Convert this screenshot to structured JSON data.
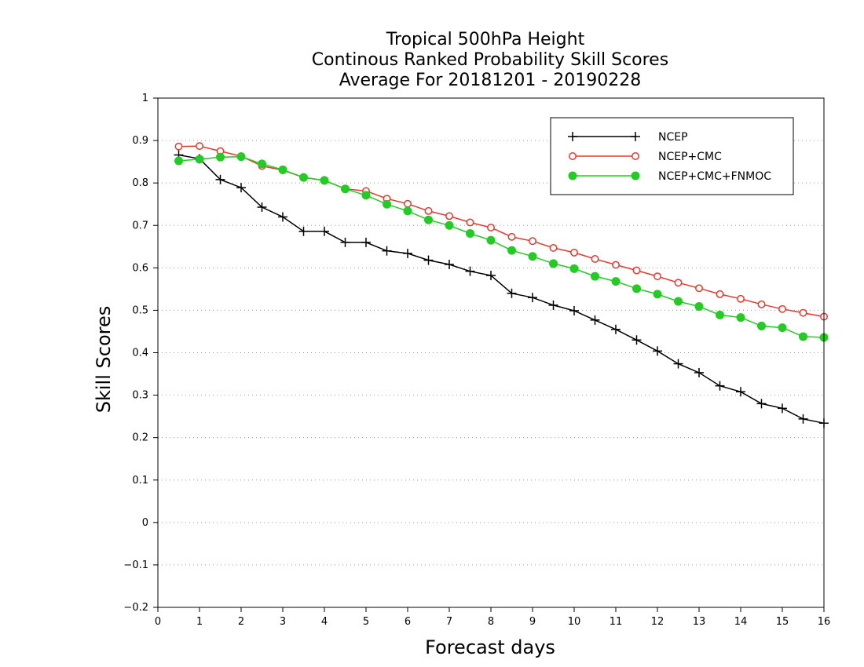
{
  "chart_data": {
    "type": "line",
    "title": [
      "Tropical 500hPa Height",
      "Continous Ranked Probability Skill Scores",
      "Average For 20181201 - 20190228"
    ],
    "xlabel": "Forecast days",
    "ylabel": "Skill Scores",
    "xlim": [
      0,
      16
    ],
    "ylim": [
      -0.2,
      1
    ],
    "xticks": [
      "0",
      "1",
      "2",
      "3",
      "4",
      "5",
      "6",
      "7",
      "8",
      "9",
      "10",
      "11",
      "12",
      "13",
      "14",
      "15",
      "16"
    ],
    "yticks": [
      "1",
      "0.9",
      "0.8",
      "0.7",
      "0.6",
      "0.5",
      "0.4",
      "0.3",
      "0.2",
      "0.1",
      "0",
      "−0.1",
      "−0.2"
    ],
    "grid": true,
    "legend_position": "top-right",
    "x": [
      0.5,
      1,
      1.5,
      2,
      2.5,
      3,
      3.5,
      4,
      4.5,
      5,
      5.5,
      6,
      6.5,
      7,
      7.5,
      8,
      8.5,
      9,
      9.5,
      10,
      10.5,
      11,
      11.5,
      12,
      12.5,
      13,
      13.5,
      14,
      14.5,
      15,
      15.5,
      16
    ],
    "series": [
      {
        "name": "NCEP",
        "color": "#000000",
        "marker": "plus",
        "values": [
          0.866,
          0.857,
          0.808,
          0.789,
          0.743,
          0.72,
          0.686,
          0.686,
          0.66,
          0.66,
          0.64,
          0.634,
          0.618,
          0.608,
          0.592,
          0.582,
          0.54,
          0.53,
          0.512,
          0.499,
          0.477,
          0.455,
          0.43,
          0.404,
          0.374,
          0.353,
          0.322,
          0.308,
          0.28,
          0.269,
          0.244,
          0.234
        ]
      },
      {
        "name": "NCEP+CMC",
        "color": "#e8392f",
        "marker": "open-circle",
        "values": [
          0.886,
          0.887,
          0.875,
          0.863,
          0.84,
          0.83,
          0.813,
          0.806,
          0.786,
          0.781,
          0.763,
          0.751,
          0.734,
          0.722,
          0.707,
          0.695,
          0.673,
          0.663,
          0.647,
          0.636,
          0.621,
          0.607,
          0.594,
          0.58,
          0.565,
          0.552,
          0.538,
          0.527,
          0.514,
          0.503,
          0.494,
          0.485
        ]
      },
      {
        "name": "NCEP+CMC+FNMOC",
        "color": "#22cc22",
        "marker": "filled-circle",
        "values": [
          0.852,
          0.856,
          0.861,
          0.862,
          0.845,
          0.831,
          0.813,
          0.806,
          0.786,
          0.771,
          0.75,
          0.734,
          0.713,
          0.7,
          0.681,
          0.665,
          0.641,
          0.627,
          0.61,
          0.598,
          0.58,
          0.568,
          0.551,
          0.538,
          0.521,
          0.509,
          0.489,
          0.483,
          0.463,
          0.459,
          0.438,
          0.436
        ]
      }
    ]
  }
}
